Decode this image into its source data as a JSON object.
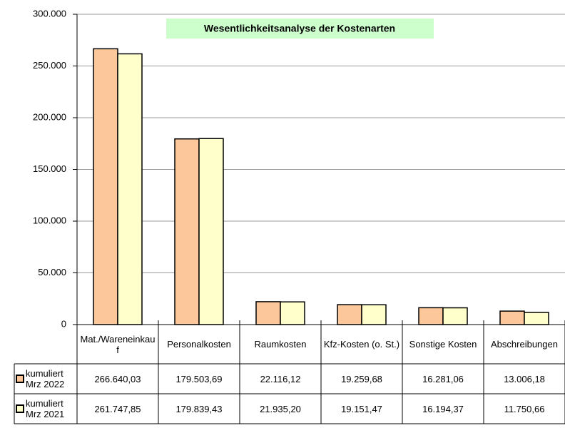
{
  "chart_data": {
    "type": "bar",
    "title": "Wesentlichkeitsanalyse der Kostenarten",
    "categories": [
      "Mat./Wareneinkauf",
      "Personalkosten",
      "Raumkosten",
      "Kfz-Kosten (o. St.)",
      "Sonstige Kosten",
      "Abschreibungen"
    ],
    "series": [
      {
        "name": "kumuliert Mrz 2022",
        "color": "#fcc89b",
        "values": [
          266640.03,
          179503.69,
          22116.12,
          19259.68,
          16281.06,
          13006.18
        ],
        "value_labels": [
          "266.640,03",
          "179.503,69",
          "22.116,12",
          "19.259,68",
          "16.281,06",
          "13.006,18"
        ]
      },
      {
        "name": "kumuliert Mrz 2021",
        "color": "#ffffcc",
        "values": [
          261747.85,
          179839.43,
          21935.2,
          19151.47,
          16194.37,
          11750.66
        ],
        "value_labels": [
          "261.747,85",
          "179.839,43",
          "21.935,20",
          "19.151,47",
          "16.194,37",
          "11.750,66"
        ]
      }
    ],
    "ylim": [
      0,
      300000
    ],
    "yticks": [
      0,
      {
        "value": 50000,
        "label": "50.000"
      },
      {
        "value": 100000,
        "label": "100.000"
      },
      {
        "value": 150000,
        "label": "150.000"
      },
      {
        "value": 200000,
        "label": "200.000"
      },
      {
        "value": 250000,
        "label": "250.000"
      },
      {
        "value": 300000,
        "label": "300.000"
      }
    ],
    "grid": true
  }
}
